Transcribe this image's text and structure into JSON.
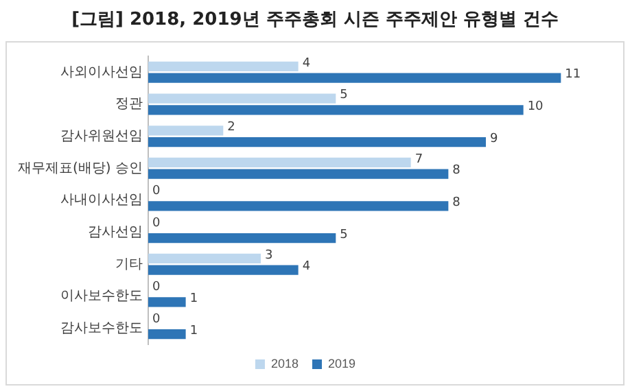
{
  "chart_data": {
    "type": "bar",
    "orientation": "horizontal",
    "title": "[그림] 2018, 2019년 주주총회 시즌 주주제안 유형별 건수",
    "categories": [
      "사외이사선임",
      "정관",
      "감사위원선임",
      "재무제표(배당) 승인",
      "사내이사선임",
      "감사선임",
      "기타",
      "이사보수한도",
      "감사보수한도"
    ],
    "series": [
      {
        "name": "2018",
        "color": "#bdd7ee",
        "values": [
          4,
          5,
          2,
          7,
          0,
          0,
          3,
          0,
          0
        ]
      },
      {
        "name": "2019",
        "color": "#2e75b6",
        "values": [
          11,
          10,
          9,
          8,
          8,
          5,
          4,
          1,
          1
        ]
      }
    ],
    "data_labels": true,
    "grid": false,
    "legend": "bottom",
    "tick_labels": "y"
  }
}
